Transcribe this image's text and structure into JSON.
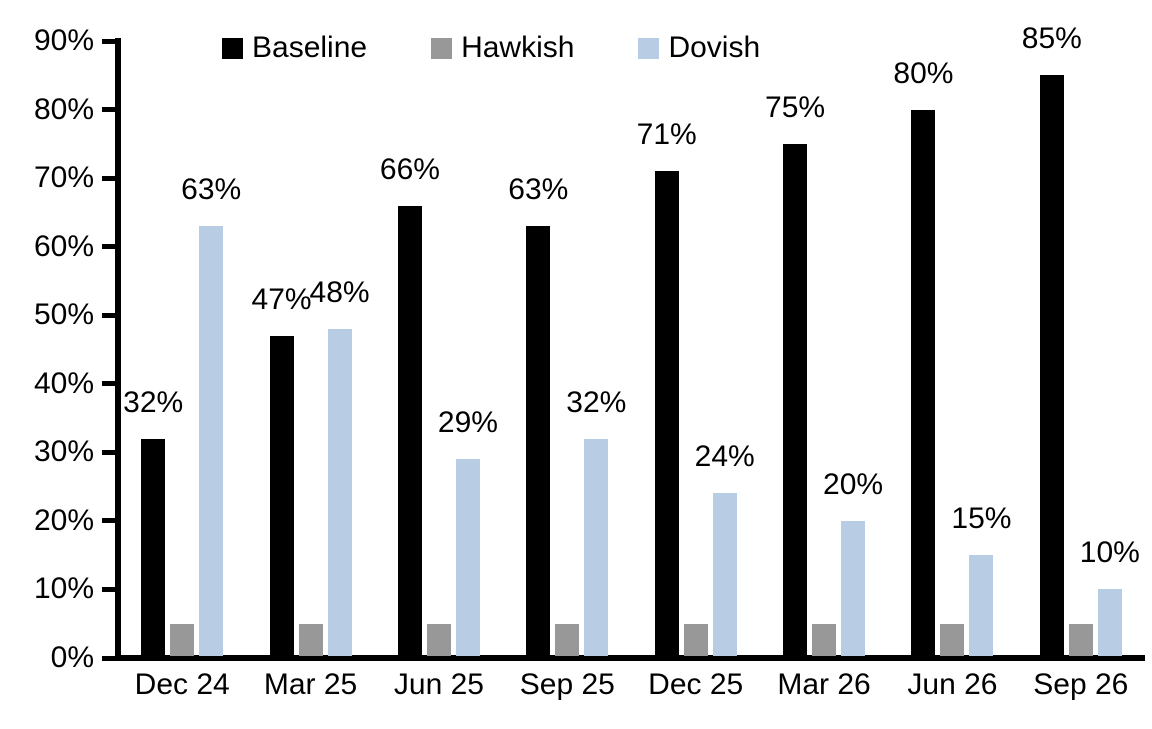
{
  "chart_data": {
    "type": "bar",
    "title": "",
    "categories": [
      "Dec 24",
      "Mar 25",
      "Jun 25",
      "Sep 25",
      "Dec 25",
      "Mar 26",
      "Jun 26",
      "Sep 26"
    ],
    "series": [
      {
        "name": "Baseline",
        "color": "#000000",
        "values": [
          32,
          47,
          66,
          63,
          71,
          75,
          80,
          85
        ],
        "data_labels": [
          "32%",
          "47%",
          "66%",
          "63%",
          "71%",
          "75%",
          "80%",
          "85%"
        ],
        "labels_visible": true
      },
      {
        "name": "Hawkish",
        "color": "#989898",
        "values": [
          5,
          5,
          5,
          5,
          5,
          5,
          5,
          5
        ],
        "data_labels": [],
        "labels_visible": false
      },
      {
        "name": "Dovish",
        "color": "#b8cde4",
        "values": [
          63,
          48,
          29,
          32,
          24,
          20,
          15,
          10
        ],
        "data_labels": [
          "63%",
          "48%",
          "29%",
          "32%",
          "24%",
          "20%",
          "15%",
          "10%"
        ],
        "labels_visible": true
      }
    ],
    "y_axis": {
      "min": 0,
      "max": 90,
      "step": 10,
      "tick_labels": [
        "0%",
        "10%",
        "20%",
        "30%",
        "40%",
        "50%",
        "60%",
        "70%",
        "80%",
        "90%"
      ],
      "format": "percent"
    },
    "x_axis": {
      "label": ""
    },
    "legend": {
      "position": "top",
      "entries": [
        "Baseline",
        "Hawkish",
        "Dovish"
      ]
    },
    "grid": false,
    "ylabel": "",
    "xlabel": ""
  },
  "colors": {
    "background": "#ffffff",
    "axis": "#000000",
    "text": "#000000"
  }
}
